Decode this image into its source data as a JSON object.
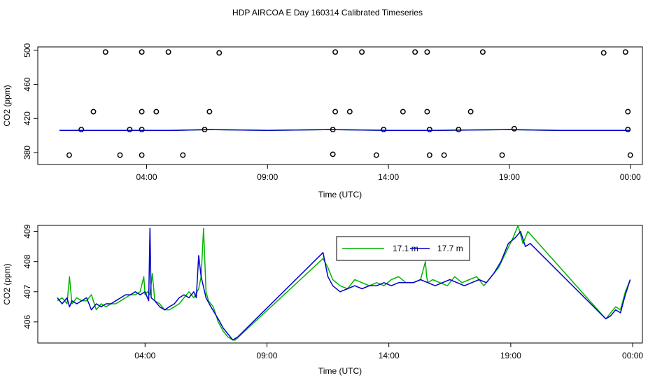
{
  "figure_title": "HDP AIRCOA E  Day 160314  Calibrated Timeseries",
  "colors": {
    "green": "#00b400",
    "blue": "#0000cc",
    "axis": "#000000"
  },
  "chart_data": [
    {
      "type": "scatter+line",
      "title": "",
      "xlabel": "Time (UTC)",
      "ylabel": "CO2 (ppm)",
      "xlim": [
        -0.5,
        24.5
      ],
      "ylim": [
        366,
        504
      ],
      "xticks": [
        4,
        9,
        14,
        19,
        24
      ],
      "xtick_labels": [
        "04:00",
        "09:00",
        "14:00",
        "19:00",
        "00:00"
      ],
      "yticks": [
        380,
        420,
        460,
        500
      ],
      "ytick_labels": [
        "380",
        "420",
        "460",
        "500"
      ],
      "calibration_points": [
        {
          "x": 2.3,
          "y": 498
        },
        {
          "x": 3.8,
          "y": 498
        },
        {
          "x": 4.9,
          "y": 498
        },
        {
          "x": 7.0,
          "y": 497
        },
        {
          "x": 11.8,
          "y": 498
        },
        {
          "x": 12.9,
          "y": 498
        },
        {
          "x": 15.1,
          "y": 498
        },
        {
          "x": 15.6,
          "y": 498
        },
        {
          "x": 17.9,
          "y": 498
        },
        {
          "x": 22.9,
          "y": 497
        },
        {
          "x": 23.8,
          "y": 498
        },
        {
          "x": 1.8,
          "y": 428
        },
        {
          "x": 3.8,
          "y": 428
        },
        {
          "x": 4.4,
          "y": 428
        },
        {
          "x": 6.6,
          "y": 428
        },
        {
          "x": 11.8,
          "y": 428
        },
        {
          "x": 12.4,
          "y": 428
        },
        {
          "x": 14.6,
          "y": 428
        },
        {
          "x": 15.6,
          "y": 428
        },
        {
          "x": 17.4,
          "y": 428
        },
        {
          "x": 23.9,
          "y": 428
        },
        {
          "x": 1.3,
          "y": 407
        },
        {
          "x": 3.3,
          "y": 407
        },
        {
          "x": 3.8,
          "y": 407
        },
        {
          "x": 6.4,
          "y": 407
        },
        {
          "x": 11.7,
          "y": 407
        },
        {
          "x": 13.8,
          "y": 407
        },
        {
          "x": 15.7,
          "y": 407
        },
        {
          "x": 16.9,
          "y": 407
        },
        {
          "x": 19.2,
          "y": 408
        },
        {
          "x": 23.9,
          "y": 407
        },
        {
          "x": 0.8,
          "y": 377
        },
        {
          "x": 2.9,
          "y": 377
        },
        {
          "x": 3.8,
          "y": 377
        },
        {
          "x": 5.5,
          "y": 377
        },
        {
          "x": 11.7,
          "y": 378
        },
        {
          "x": 13.5,
          "y": 377
        },
        {
          "x": 15.7,
          "y": 377
        },
        {
          "x": 16.3,
          "y": 377
        },
        {
          "x": 18.7,
          "y": 377
        },
        {
          "x": 24.0,
          "y": 377
        }
      ],
      "series": [
        {
          "name": "17.1 m",
          "color": "#00b400",
          "x": [
            0.4,
            3.0,
            5.0,
            6.6,
            9.0,
            11.6,
            14.0,
            16.0,
            19.0,
            21.0,
            23.5,
            24.0
          ],
          "y": [
            406,
            406,
            406,
            407,
            406,
            407,
            406,
            406,
            407,
            406,
            406,
            406
          ]
        },
        {
          "name": "17.7 m",
          "color": "#0000cc",
          "x": [
            0.4,
            3.0,
            5.0,
            6.6,
            9.0,
            11.6,
            14.0,
            16.0,
            19.0,
            21.0,
            23.5,
            24.0
          ],
          "y": [
            406,
            406,
            406,
            407,
            406,
            407,
            406,
            406,
            407,
            406,
            406,
            406
          ]
        }
      ]
    },
    {
      "type": "line",
      "title": "",
      "xlabel": "Time (UTC)",
      "ylabel": "CO2 (ppm)",
      "xlim": [
        -0.4,
        24.4
      ],
      "ylim": [
        405.3,
        409.2
      ],
      "xticks": [
        4,
        9,
        14,
        19,
        24
      ],
      "xtick_labels": [
        "04:00",
        "09:00",
        "14:00",
        "19:00",
        "00:00"
      ],
      "yticks": [
        406,
        407,
        408,
        409
      ],
      "ytick_labels": [
        "406",
        "407",
        "408",
        "409"
      ],
      "legend": {
        "position": "top-center",
        "entries": [
          "17.1 m",
          "17.7 m"
        ]
      },
      "series": [
        {
          "name": "17.1 m",
          "color": "#00b400",
          "x": [
            0.4,
            0.6,
            0.8,
            0.9,
            1.0,
            1.2,
            1.4,
            1.6,
            1.8,
            2.0,
            2.2,
            2.4,
            2.6,
            2.8,
            3.0,
            3.2,
            3.4,
            3.6,
            3.8,
            3.95,
            4.0,
            4.1,
            4.2,
            4.3,
            4.4,
            4.6,
            4.8,
            5.0,
            5.2,
            5.4,
            5.6,
            5.8,
            6.0,
            6.2,
            6.3,
            6.4,
            6.5,
            6.6,
            6.8,
            7.0,
            7.2,
            7.4,
            7.6,
            7.7,
            11.3,
            11.5,
            11.7,
            12.0,
            12.3,
            12.6,
            12.9,
            13.2,
            13.5,
            13.8,
            14.1,
            14.4,
            14.7,
            15.0,
            15.3,
            15.5,
            15.55,
            15.6,
            15.8,
            16.1,
            16.4,
            16.7,
            17.0,
            17.3,
            17.6,
            17.9,
            18.2,
            18.5,
            18.8,
            19.1,
            19.3,
            19.5,
            19.7,
            22.9,
            23.1,
            23.3,
            23.5,
            23.7,
            23.9
          ],
          "y": [
            406.7,
            406.8,
            406.6,
            407.5,
            406.6,
            406.8,
            406.7,
            406.7,
            406.9,
            406.4,
            406.6,
            406.5,
            406.6,
            406.6,
            406.7,
            406.8,
            406.9,
            406.9,
            407.0,
            407.5,
            406.9,
            407.0,
            406.9,
            407.6,
            406.7,
            406.6,
            406.4,
            406.4,
            406.5,
            406.6,
            406.8,
            407.0,
            406.8,
            407.1,
            407.5,
            409.1,
            407.0,
            406.7,
            406.5,
            406.0,
            405.7,
            405.5,
            405.4,
            405.4,
            408.1,
            407.8,
            407.4,
            407.2,
            407.1,
            407.4,
            407.3,
            407.2,
            407.3,
            407.2,
            407.4,
            407.5,
            407.3,
            407.3,
            407.4,
            408.0,
            407.5,
            407.3,
            407.4,
            407.3,
            407.2,
            407.5,
            407.3,
            407.4,
            407.5,
            407.2,
            407.5,
            407.8,
            408.3,
            408.8,
            409.2,
            408.6,
            409.0,
            406.1,
            406.3,
            406.5,
            406.4,
            407.0,
            407.4
          ]
        },
        {
          "name": "17.7 m",
          "color": "#0000cc",
          "x": [
            0.4,
            0.6,
            0.8,
            0.9,
            1.0,
            1.2,
            1.4,
            1.6,
            1.8,
            2.0,
            2.2,
            2.4,
            2.6,
            2.8,
            3.0,
            3.2,
            3.4,
            3.6,
            3.8,
            4.0,
            4.15,
            4.2,
            4.25,
            4.4,
            4.6,
            4.8,
            5.0,
            5.2,
            5.4,
            5.6,
            5.8,
            6.0,
            6.1,
            6.2,
            6.3,
            6.5,
            6.7,
            7.0,
            7.2,
            7.4,
            7.6,
            7.8,
            11.3,
            11.5,
            11.7,
            12.0,
            12.3,
            12.6,
            12.9,
            13.2,
            13.5,
            13.8,
            14.1,
            14.4,
            14.7,
            15.0,
            15.3,
            15.6,
            15.9,
            16.2,
            16.5,
            16.8,
            17.1,
            17.4,
            17.7,
            18.0,
            18.3,
            18.6,
            18.9,
            19.2,
            19.4,
            19.6,
            19.8,
            22.9,
            23.1,
            23.3,
            23.5,
            23.7,
            23.9
          ],
          "y": [
            406.8,
            406.6,
            406.8,
            406.5,
            406.7,
            406.6,
            406.7,
            406.8,
            406.4,
            406.6,
            406.5,
            406.6,
            406.6,
            406.7,
            406.8,
            406.9,
            406.9,
            407.0,
            406.9,
            407.0,
            406.7,
            409.1,
            406.8,
            406.7,
            406.5,
            406.4,
            406.5,
            406.6,
            406.8,
            406.9,
            406.8,
            407.0,
            406.8,
            408.2,
            407.5,
            406.8,
            406.5,
            406.1,
            405.8,
            405.6,
            405.4,
            405.5,
            408.3,
            407.5,
            407.2,
            407.0,
            407.1,
            407.2,
            407.1,
            407.2,
            407.2,
            407.3,
            407.2,
            407.3,
            407.3,
            407.3,
            407.4,
            407.3,
            407.2,
            407.3,
            407.4,
            407.3,
            407.2,
            407.3,
            407.4,
            407.3,
            407.6,
            408.0,
            408.6,
            408.8,
            409.0,
            408.5,
            408.6,
            406.1,
            406.2,
            406.4,
            406.3,
            406.9,
            407.4
          ]
        }
      ]
    }
  ]
}
